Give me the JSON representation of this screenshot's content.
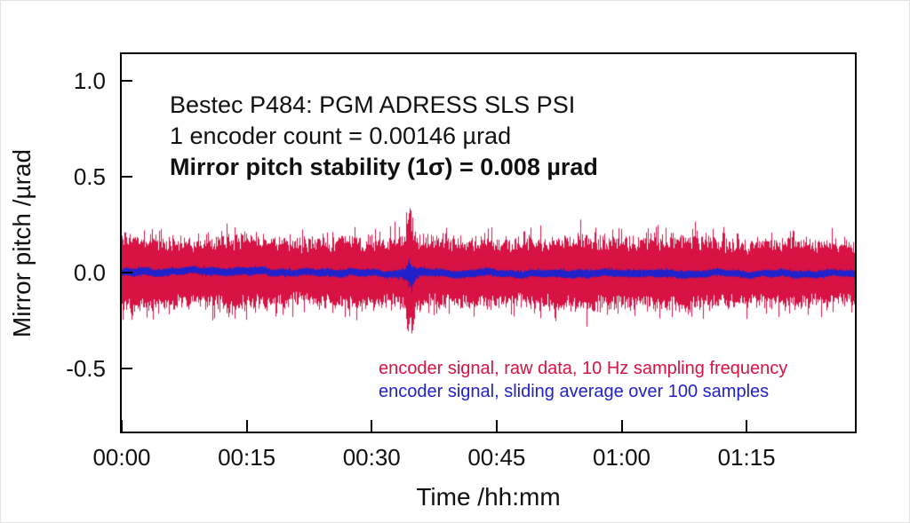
{
  "chart_data": {
    "type": "line",
    "title": "",
    "xlabel": "Time /hh:mm",
    "ylabel": "Mirror pitch /µrad",
    "x_unit": "minutes",
    "xlim": [
      0,
      88
    ],
    "ylim": [
      -0.83,
      1.14
    ],
    "grid": false,
    "x_ticks": [
      {
        "minute": 0,
        "label": "00:00"
      },
      {
        "minute": 15,
        "label": "00:15"
      },
      {
        "minute": 30,
        "label": "00:30"
      },
      {
        "minute": 45,
        "label": "00:45"
      },
      {
        "minute": 60,
        "label": "01:00"
      },
      {
        "minute": 75,
        "label": "01:15"
      }
    ],
    "y_ticks": [
      {
        "value": 1.0,
        "label": "1.0"
      },
      {
        "value": 0.5,
        "label": "0.5"
      },
      {
        "value": 0.0,
        "label": "0.0"
      },
      {
        "value": -0.5,
        "label": "-0.5"
      }
    ],
    "annotations": [
      {
        "text": "Bestec P484: PGM ADRESS SLS PSI",
        "bold": false
      },
      {
        "text": "1 encoder count = 0.00146 µrad",
        "bold": false
      },
      {
        "text": "Mirror pitch stability (1σ) = 0.008 µrad",
        "bold": true
      }
    ],
    "legend_position": "inside-bottom-right",
    "series": [
      {
        "name": "encoder signal, raw data, 10 Hz sampling frequency",
        "color": "#d81243",
        "kind": "noise-band",
        "mean": 0.0,
        "halfwidth_core": 0.1,
        "halfwidth_typical": 0.15,
        "halfwidth_max": 0.24,
        "spike_minute": 34.6,
        "spike_halfwidth": 0.33
      },
      {
        "name": "encoder signal, sliding average over 100 samples",
        "color": "#2121cb",
        "kind": "noise-band",
        "mean": 0.0,
        "halfwidth_core": 0.012,
        "halfwidth_typical": 0.017,
        "halfwidth_max": 0.026,
        "spike_minute": 34.6,
        "spike_halfwidth": 0.062
      }
    ]
  }
}
